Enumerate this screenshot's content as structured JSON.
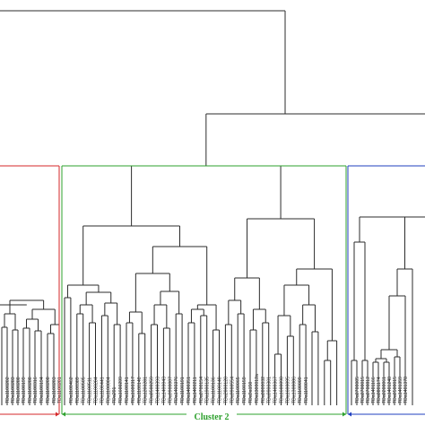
{
  "figure": {
    "clusters": [
      {
        "name": "cluster-1",
        "label": "",
        "color": "#d62728"
      },
      {
        "name": "cluster-2",
        "label": "Cluster 2",
        "color": "#2ca02c"
      },
      {
        "name": "cluster-3",
        "label": "",
        "color": "#1f3fbf"
      }
    ],
    "line_color": "#2b2b2b",
    "leaf_labels": {
      "cluster1": [
        "TDa1100202",
        "TDa1100283",
        "TDa1100280",
        "TDa1100199",
        "TDa1100280",
        "TDa1100316",
        "TDa1100194",
        "TDa1100208",
        "TDa1100203",
        "TDa1100201"
      ],
      "cluster2": [
        "TDa1100462",
        "TDa1100389",
        "TDa1100505",
        "TDa1100511",
        "TDa1100284",
        "TDa1100441",
        "TDa1100004",
        "TDa291",
        "TDa1600299",
        "TDa1100141",
        "TDa1600317",
        "TDa1100140",
        "TDa1200281",
        "TDa8500259",
        "TDa1400393",
        "TDa1400043",
        "TDa9900007",
        "TDa1400376",
        "TDa1100191",
        "TDa1400351",
        "TDa1400211",
        "TDa0700154",
        "TDa1900135",
        "TDa1100136",
        "TDa1100148",
        "TDa2000120",
        "TDa9900554",
        "TDa1100065",
        "TDa1100159",
        "TDa9a150",
        "TDa1300012a",
        "TDa0800032",
        "TDa9900301",
        "TDa1400367",
        "TDa1600098",
        "TDa1600095",
        "TDa1300086",
        "TDa1100009",
        "TDa1100041"
      ],
      "cluster3": [
        "TDa0700005",
        "TDa0700015",
        "TDa0700812",
        "TDa1401166",
        "TDa0801174",
        "TDa0200061",
        "TDa1401248",
        "TDa0500015",
        "TDa1401359",
        "TDa1401378"
      ]
    }
  }
}
